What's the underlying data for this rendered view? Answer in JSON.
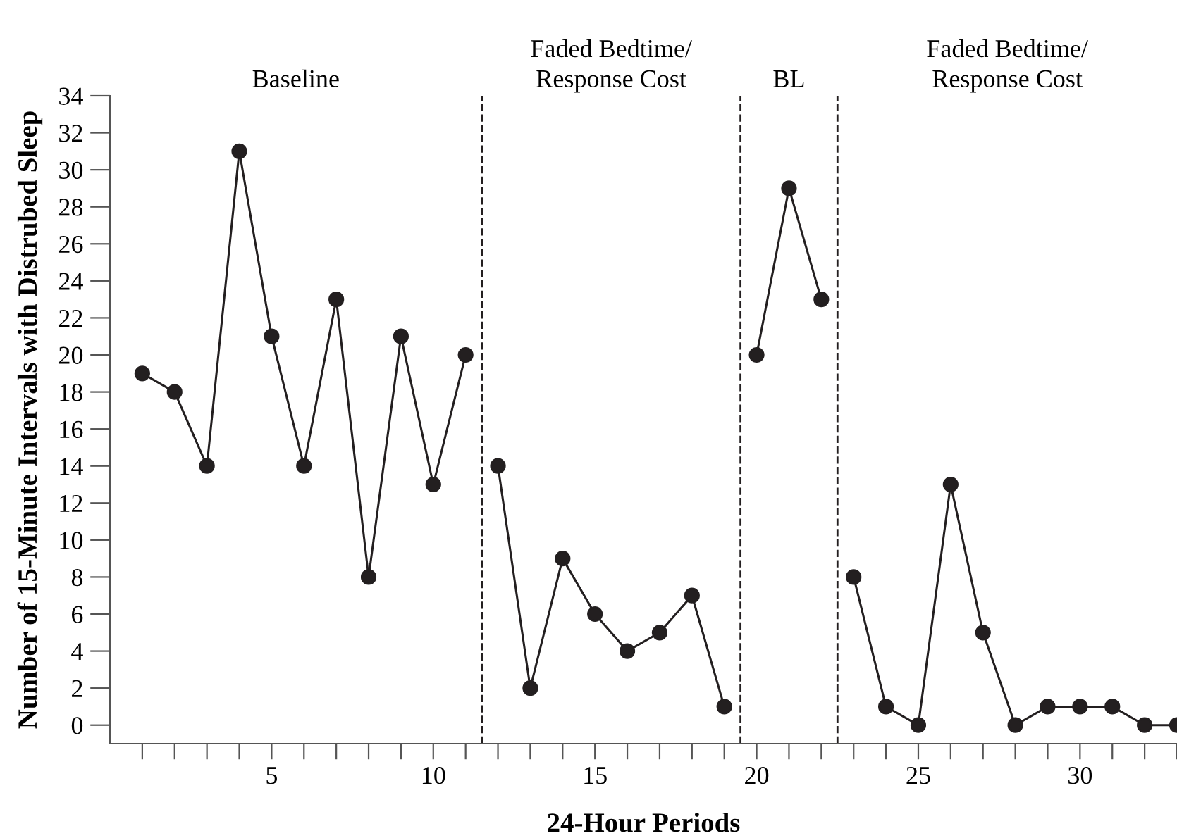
{
  "chart_data": {
    "type": "line",
    "xlabel": "24-Hour Periods",
    "ylabel": "Number of 15-Minute Intervals with Distrubed Sleep",
    "annotations": [
      "Baseline",
      "Faded Bedtime/\nResponse Cost",
      "BL",
      "Faded Bedtime/\nResponse Cost"
    ],
    "series": [
      {
        "color": "#231f20",
        "x": [
          1,
          2,
          3,
          4,
          5,
          6,
          7,
          8,
          9,
          10,
          11
        ],
        "values": [
          19,
          18,
          14,
          31,
          21,
          14,
          23,
          8,
          21,
          13,
          20
        ]
      },
      {
        "color": "#231f20",
        "x": [
          12,
          13,
          14,
          15,
          16,
          17,
          18,
          19
        ],
        "values": [
          14,
          2,
          9,
          6,
          4,
          5,
          7,
          1
        ]
      },
      {
        "color": "#231f20",
        "x": [
          20,
          21,
          22
        ],
        "values": [
          20,
          29,
          23
        ]
      },
      {
        "color": "#231f20",
        "x": [
          23,
          24,
          25,
          26,
          27,
          28,
          29,
          30,
          31,
          32,
          33
        ],
        "values": [
          8,
          1,
          0,
          13,
          5,
          0,
          1,
          1,
          1,
          0,
          0
        ]
      }
    ],
    "ref_lines": [
      {
        "axis": "x",
        "value": 11.5,
        "line_style": "dashed",
        "color": "#231f20"
      },
      {
        "axis": "x",
        "value": 19.5,
        "line_style": "dashed",
        "color": "#231f20"
      },
      {
        "axis": "x",
        "value": 22.5,
        "line_style": "dashed",
        "color": "#231f20"
      }
    ],
    "xlim": [
      0,
      33
    ],
    "ylim": [
      -1,
      34
    ],
    "xticks": [
      {
        "value": 1,
        "label": null
      },
      {
        "value": 2,
        "label": null
      },
      {
        "value": 3,
        "label": null
      },
      {
        "value": 4,
        "label": null
      },
      5,
      {
        "value": 6,
        "label": null
      },
      {
        "value": 7,
        "label": null
      },
      {
        "value": 8,
        "label": null
      },
      {
        "value": 9,
        "label": null
      },
      10,
      {
        "value": 11,
        "label": null
      },
      {
        "value": 12,
        "label": null
      },
      {
        "value": 13,
        "label": null
      },
      {
        "value": 14,
        "label": null
      },
      15,
      {
        "value": 16,
        "label": null
      },
      {
        "value": 17,
        "label": null
      },
      {
        "value": 18,
        "label": null
      },
      {
        "value": 19,
        "label": null
      },
      20,
      {
        "value": 21,
        "label": null
      },
      {
        "value": 22,
        "label": null
      },
      {
        "value": 23,
        "label": null
      },
      {
        "value": 24,
        "label": null
      },
      25,
      {
        "value": 26,
        "label": null
      },
      {
        "value": 27,
        "label": null
      },
      {
        "value": 28,
        "label": null
      },
      {
        "value": 29,
        "label": null
      },
      30,
      {
        "value": 31,
        "label": null
      },
      {
        "value": 32,
        "label": null
      },
      {
        "value": 33,
        "label": null
      }
    ],
    "yticks": [
      0,
      2,
      4,
      6,
      8,
      10,
      12,
      14,
      16,
      18,
      20,
      22,
      24,
      26,
      28,
      30,
      32,
      34
    ],
    "grid": false,
    "legend": false,
    "marker": "circle",
    "line_style": "solid"
  }
}
